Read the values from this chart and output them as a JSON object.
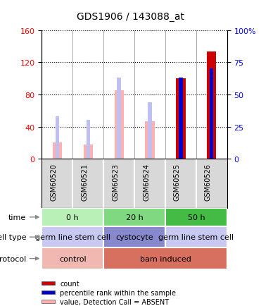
{
  "title": "GDS1906 / 143088_at",
  "samples": [
    "GSM60520",
    "GSM60521",
    "GSM60523",
    "GSM60524",
    "GSM60525",
    "GSM60526"
  ],
  "left_ylim": [
    0,
    160
  ],
  "right_ylim": [
    0,
    100
  ],
  "left_yticks": [
    0,
    40,
    80,
    120,
    160
  ],
  "right_yticks": [
    0,
    25,
    50,
    75,
    100
  ],
  "right_yticklabels": [
    "0",
    "25",
    "50",
    "75",
    "100%"
  ],
  "bar_count_red": [
    0,
    0,
    0,
    0,
    100,
    133
  ],
  "bar_rank_blue": [
    0,
    0,
    0,
    0,
    63,
    70
  ],
  "bar_value_pink": [
    20,
    18,
    85,
    47,
    0,
    0
  ],
  "bar_rank_lightblue": [
    33,
    30,
    63,
    44,
    0,
    0
  ],
  "time_groups": [
    {
      "label": "0 h",
      "start": 0,
      "end": 2,
      "color": "#b8f0b8"
    },
    {
      "label": "20 h",
      "start": 2,
      "end": 4,
      "color": "#80d880"
    },
    {
      "label": "50 h",
      "start": 4,
      "end": 6,
      "color": "#44bb44"
    }
  ],
  "celltype_groups": [
    {
      "label": "germ line stem cell",
      "start": 0,
      "end": 2,
      "color": "#c8c8f0"
    },
    {
      "label": "cystocyte",
      "start": 2,
      "end": 4,
      "color": "#8888cc"
    },
    {
      "label": "germ line stem cell",
      "start": 4,
      "end": 6,
      "color": "#c8c8f0"
    }
  ],
  "protocol_groups": [
    {
      "label": "control",
      "start": 0,
      "end": 2,
      "color": "#f0b8b0"
    },
    {
      "label": "bam induced",
      "start": 2,
      "end": 6,
      "color": "#d87060"
    }
  ],
  "legend_items": [
    {
      "color": "#cc0000",
      "label": "count"
    },
    {
      "color": "#0000cc",
      "label": "percentile rank within the sample"
    },
    {
      "color": "#ffb0b0",
      "label": "value, Detection Call = ABSENT"
    },
    {
      "color": "#c0c0f0",
      "label": "rank, Detection Call = ABSENT"
    }
  ],
  "sample_bg_color": "#d8d8d8",
  "plot_bg_color": "#ffffff",
  "pink_bar_width": 0.3,
  "blue_bar_width": 0.12,
  "row_labels": [
    "time",
    "cell type",
    "protocol"
  ],
  "row_label_fontsize": 8,
  "sample_label_fontsize": 7,
  "tick_fontsize": 8,
  "annotation_fontsize": 8
}
